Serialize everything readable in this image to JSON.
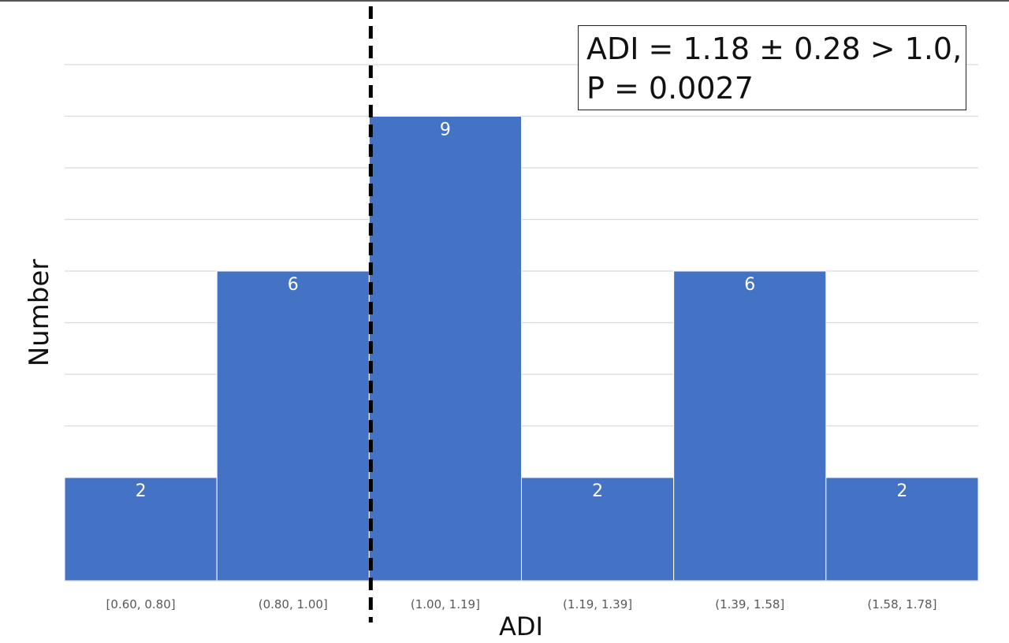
{
  "chart_data": {
    "type": "bar",
    "title": "",
    "xlabel": "ADI",
    "ylabel": "Number",
    "categories": [
      "[0.60, 0.80]",
      "(0.80, 1.00]",
      "(1.00, 1.19]",
      "(1.19, 1.39]",
      "(1.39, 1.58]",
      "(1.58, 1.78]"
    ],
    "values": [
      2,
      6,
      9,
      2,
      6,
      2
    ],
    "ylim": [
      0,
      10
    ],
    "grid": true,
    "bar_color": "#4472C4",
    "grid_color": "#D9D9D9",
    "reference_line": {
      "x_value": 1.0,
      "style": "dashed",
      "color": "#000000"
    },
    "annotation": [
      "ADI = 1.18 ± 0.28 > 1.0,",
      "P = 0.0027"
    ]
  }
}
